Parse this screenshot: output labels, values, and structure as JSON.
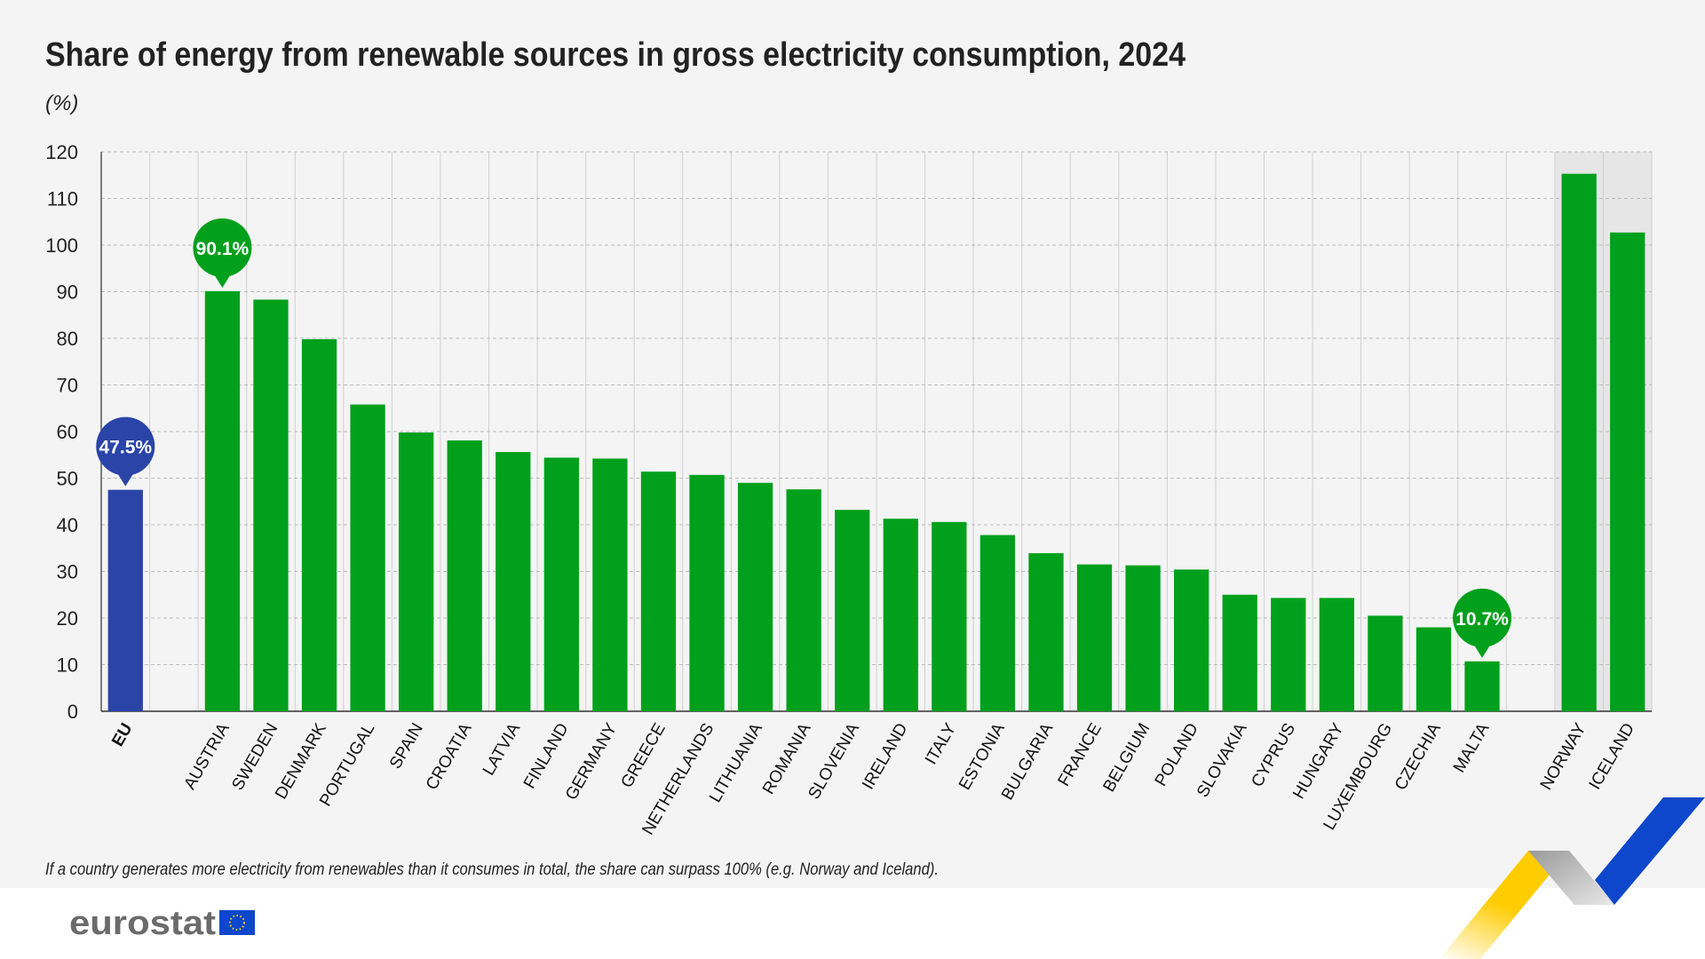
{
  "chart_data": {
    "type": "bar",
    "title": "Share of energy from renewable sources in gross electricity consumption, 2024",
    "unit": "(%)",
    "ylim": [
      0,
      120
    ],
    "yticks": [
      0,
      10,
      20,
      30,
      40,
      50,
      60,
      70,
      80,
      90,
      100,
      110,
      120
    ],
    "grid": true,
    "categories": [
      "EU",
      "",
      "AUSTRIA",
      "SWEDEN",
      "DENMARK",
      "PORTUGAL",
      "SPAIN",
      "CROATIA",
      "LATVIA",
      "FINLAND",
      "GERMANY",
      "GREECE",
      "NETHERLANDS",
      "LITHUANIA",
      "ROMANIA",
      "SLOVENIA",
      "IRELAND",
      "ITALY",
      "ESTONIA",
      "BULGARIA",
      "FRANCE",
      "BELGIUM",
      "POLAND",
      "SLOVAKIA",
      "CYPRUS",
      "HUNGARY",
      "LUXEMBOURG",
      "CZECHIA",
      "MALTA",
      "",
      "NORWAY",
      "ICELAND"
    ],
    "values": [
      47.5,
      null,
      90.1,
      88.3,
      79.8,
      65.8,
      59.8,
      58.1,
      55.6,
      54.4,
      54.2,
      51.4,
      50.7,
      49.0,
      47.6,
      43.2,
      41.3,
      40.6,
      37.8,
      33.9,
      31.5,
      31.3,
      30.4,
      25.0,
      24.3,
      24.3,
      20.5,
      18.0,
      10.7,
      null,
      115.3,
      102.7
    ],
    "annotations": [
      {
        "category": "EU",
        "label": "47.5%"
      },
      {
        "category": "AUSTRIA",
        "label": "90.1%"
      },
      {
        "category": "MALTA",
        "label": "10.7%"
      }
    ],
    "highlighted_categories": [
      "NORWAY",
      "ICELAND"
    ],
    "colors": {
      "eu": "#2a44a8",
      "country": "#00a01c",
      "highlight_bg": "#e6e6e6",
      "grid": "#bbbbbb"
    },
    "note": "If a country generates more electricity from renewables than it consumes in total, the share can surpass 100% (e.g. Norway and Iceland)."
  },
  "footer": {
    "logo_text": "eurostat"
  }
}
